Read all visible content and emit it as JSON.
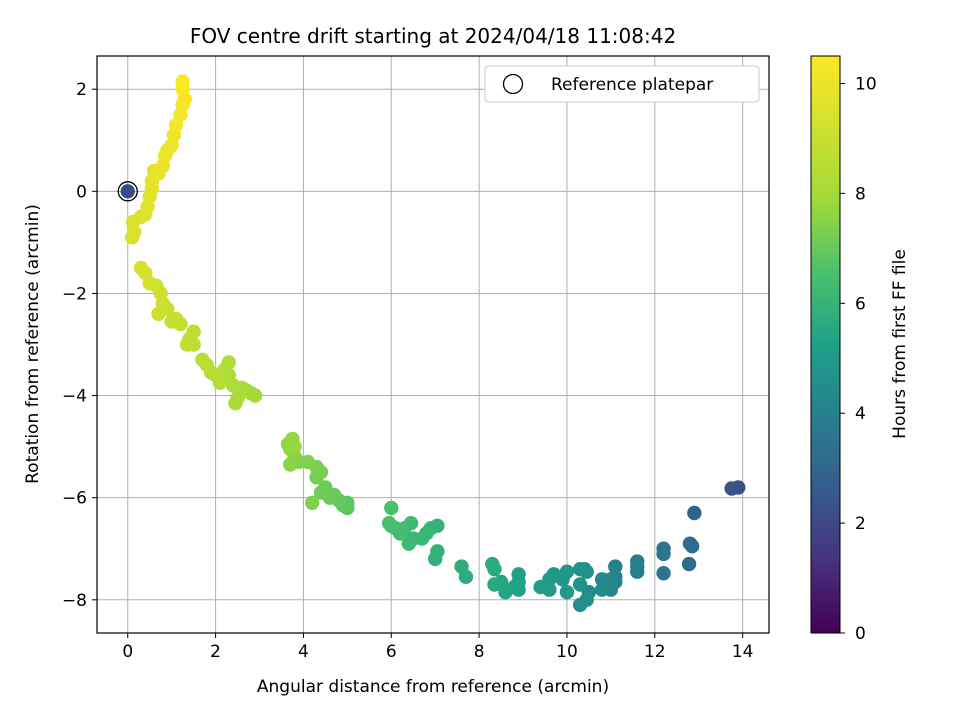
{
  "chart_data": {
    "type": "scatter",
    "title": "FOV centre drift starting at 2024/04/18 11:08:42",
    "xlabel": "Angular distance from reference (arcmin)",
    "ylabel": "Rotation from reference (arcmin)",
    "xlim": [
      -0.7,
      14.6
    ],
    "ylim": [
      -8.65,
      2.65
    ],
    "xticks": [
      0,
      2,
      4,
      6,
      8,
      10,
      12,
      14
    ],
    "yticks": [
      -8,
      -6,
      -4,
      -2,
      0,
      2
    ],
    "xtick_labels": [
      "0",
      "2",
      "4",
      "6",
      "8",
      "10",
      "12",
      "14"
    ],
    "ytick_labels": [
      "−8",
      "−6",
      "−4",
      "−2",
      "0",
      "2"
    ],
    "grid": true,
    "legend": {
      "position": "top-right",
      "entries": [
        {
          "label": "Reference platepar",
          "marker": "open-circle"
        }
      ]
    },
    "reference_point": {
      "x": 0,
      "y": 0
    },
    "colorbar": {
      "label": "Hours from first FF file",
      "range": [
        0,
        10.5
      ],
      "ticks": [
        0,
        2,
        4,
        6,
        8,
        10
      ],
      "tick_labels": [
        "0",
        "2",
        "4",
        "6",
        "8",
        "10"
      ],
      "colormap": "viridis"
    },
    "series": [
      {
        "points": [
          [
            13.9,
            -5.8,
            2.2
          ],
          [
            13.75,
            -5.82,
            2.3
          ],
          [
            12.9,
            -6.3,
            2.9
          ],
          [
            12.85,
            -6.95,
            3.1
          ],
          [
            12.8,
            -6.9,
            3.15
          ],
          [
            12.78,
            -7.3,
            3.2
          ],
          [
            12.2,
            -7.0,
            3.5
          ],
          [
            12.2,
            -7.1,
            3.55
          ],
          [
            12.2,
            -7.48,
            3.6
          ],
          [
            11.6,
            -7.25,
            3.8
          ],
          [
            11.6,
            -7.35,
            3.85
          ],
          [
            11.6,
            -7.45,
            3.9
          ],
          [
            11.1,
            -7.35,
            4.0
          ],
          [
            11.1,
            -7.55,
            4.05
          ],
          [
            11.1,
            -7.65,
            4.1
          ],
          [
            11.0,
            -7.6,
            4.15
          ],
          [
            11.0,
            -7.8,
            4.2
          ],
          [
            10.9,
            -7.65,
            4.25
          ],
          [
            10.8,
            -7.6,
            4.3
          ],
          [
            10.8,
            -7.8,
            4.35
          ],
          [
            10.5,
            -7.85,
            4.4
          ],
          [
            10.4,
            -7.4,
            4.45
          ],
          [
            10.45,
            -7.45,
            4.5
          ],
          [
            10.45,
            -8.0,
            4.55
          ],
          [
            10.3,
            -8.1,
            4.6
          ],
          [
            10.3,
            -7.7,
            4.65
          ],
          [
            10.3,
            -7.4,
            4.7
          ],
          [
            10.0,
            -7.45,
            4.8
          ],
          [
            9.9,
            -7.6,
            4.85
          ],
          [
            10.0,
            -7.85,
            4.9
          ],
          [
            9.7,
            -7.5,
            4.95
          ],
          [
            9.6,
            -7.6,
            5.0
          ],
          [
            9.6,
            -7.8,
            5.05
          ],
          [
            9.4,
            -7.75,
            5.1
          ],
          [
            8.9,
            -7.5,
            5.2
          ],
          [
            8.9,
            -7.65,
            5.25
          ],
          [
            8.9,
            -7.8,
            5.3
          ],
          [
            8.8,
            -7.75,
            5.35
          ],
          [
            8.6,
            -7.85,
            5.4
          ],
          [
            8.5,
            -7.65,
            5.45
          ],
          [
            8.35,
            -7.7,
            5.5
          ],
          [
            8.35,
            -7.4,
            5.55
          ],
          [
            8.3,
            -7.3,
            5.6
          ],
          [
            7.7,
            -7.55,
            5.7
          ],
          [
            7.6,
            -7.35,
            5.75
          ],
          [
            7.0,
            -7.2,
            5.85
          ],
          [
            7.05,
            -7.05,
            5.9
          ],
          [
            7.05,
            -6.55,
            5.95
          ],
          [
            6.9,
            -6.6,
            6.0
          ],
          [
            6.8,
            -6.7,
            6.05
          ],
          [
            6.7,
            -6.8,
            6.1
          ],
          [
            6.5,
            -6.8,
            6.15
          ],
          [
            6.4,
            -6.9,
            6.2
          ],
          [
            6.45,
            -6.5,
            6.25
          ],
          [
            6.3,
            -6.6,
            6.3
          ],
          [
            6.2,
            -6.7,
            6.35
          ],
          [
            6.1,
            -6.6,
            6.4
          ],
          [
            6.0,
            -6.55,
            6.45
          ],
          [
            5.95,
            -6.5,
            6.5
          ],
          [
            6.0,
            -6.2,
            6.55
          ],
          [
            5.0,
            -6.1,
            6.8
          ],
          [
            5.0,
            -6.2,
            6.85
          ],
          [
            4.9,
            -6.15,
            6.9
          ],
          [
            4.8,
            -6.05,
            6.95
          ],
          [
            4.7,
            -5.95,
            7.0
          ],
          [
            4.6,
            -6.0,
            7.05
          ],
          [
            4.5,
            -5.8,
            7.1
          ],
          [
            4.4,
            -5.9,
            7.15
          ],
          [
            4.3,
            -5.6,
            7.2
          ],
          [
            4.4,
            -5.5,
            7.25
          ],
          [
            4.3,
            -5.4,
            7.3
          ],
          [
            4.2,
            -6.1,
            7.35
          ],
          [
            4.1,
            -5.3,
            7.4
          ],
          [
            3.9,
            -5.3,
            7.45
          ],
          [
            3.8,
            -5.2,
            7.5
          ],
          [
            3.7,
            -5.35,
            7.55
          ],
          [
            3.65,
            -4.95,
            7.6
          ],
          [
            3.7,
            -5.05,
            7.65
          ],
          [
            3.75,
            -4.85,
            7.7
          ],
          [
            3.8,
            -5.0,
            7.75
          ],
          [
            2.9,
            -4.0,
            7.9
          ],
          [
            2.8,
            -3.95,
            7.95
          ],
          [
            2.7,
            -3.9,
            8.0
          ],
          [
            2.6,
            -3.85,
            8.05
          ],
          [
            2.5,
            -4.05,
            8.1
          ],
          [
            2.45,
            -4.15,
            8.15
          ],
          [
            2.4,
            -3.8,
            8.2
          ],
          [
            2.3,
            -3.6,
            8.25
          ],
          [
            2.2,
            -3.5,
            8.3
          ],
          [
            2.3,
            -3.35,
            8.35
          ],
          [
            2.1,
            -3.75,
            8.4
          ],
          [
            2.0,
            -3.6,
            8.45
          ],
          [
            1.9,
            -3.55,
            8.5
          ],
          [
            1.8,
            -3.4,
            8.55
          ],
          [
            1.7,
            -3.3,
            8.6
          ],
          [
            1.5,
            -3.0,
            8.65
          ],
          [
            1.4,
            -2.9,
            8.7
          ],
          [
            1.5,
            -2.75,
            8.75
          ],
          [
            1.35,
            -3.0,
            8.8
          ],
          [
            1.2,
            -2.6,
            8.85
          ],
          [
            1.1,
            -2.5,
            8.9
          ],
          [
            1.0,
            -2.55,
            8.95
          ],
          [
            0.9,
            -2.3,
            9.0
          ],
          [
            0.8,
            -2.2,
            9.05
          ],
          [
            0.7,
            -2.4,
            9.1
          ],
          [
            0.75,
            -2.0,
            9.15
          ],
          [
            0.65,
            -1.85,
            9.2
          ],
          [
            0.5,
            -1.8,
            9.25
          ],
          [
            0.4,
            -1.6,
            9.3
          ],
          [
            0.3,
            -1.5,
            9.35
          ],
          [
            0.15,
            -0.8,
            9.4
          ],
          [
            0.1,
            -0.9,
            9.45
          ],
          [
            0.12,
            -0.6,
            9.5
          ],
          [
            0.3,
            -0.5,
            9.55
          ],
          [
            0.4,
            -0.45,
            9.6
          ],
          [
            0.45,
            -0.3,
            9.65
          ],
          [
            0.5,
            -0.1,
            9.7
          ],
          [
            0.55,
            0.05,
            9.75
          ],
          [
            0.55,
            0.2,
            9.8
          ],
          [
            0.6,
            0.4,
            9.85
          ],
          [
            0.7,
            0.35,
            9.9
          ],
          [
            0.8,
            0.5,
            9.95
          ],
          [
            0.85,
            0.7,
            10.0
          ],
          [
            0.9,
            0.8,
            10.05
          ],
          [
            1.0,
            0.9,
            10.1
          ],
          [
            1.05,
            1.1,
            10.15
          ],
          [
            1.1,
            1.3,
            10.2
          ],
          [
            1.2,
            1.5,
            10.25
          ],
          [
            1.25,
            1.7,
            10.3
          ],
          [
            1.3,
            1.8,
            10.35
          ],
          [
            1.25,
            2.0,
            10.4
          ],
          [
            1.25,
            2.15,
            10.45
          ]
        ]
      }
    ]
  }
}
